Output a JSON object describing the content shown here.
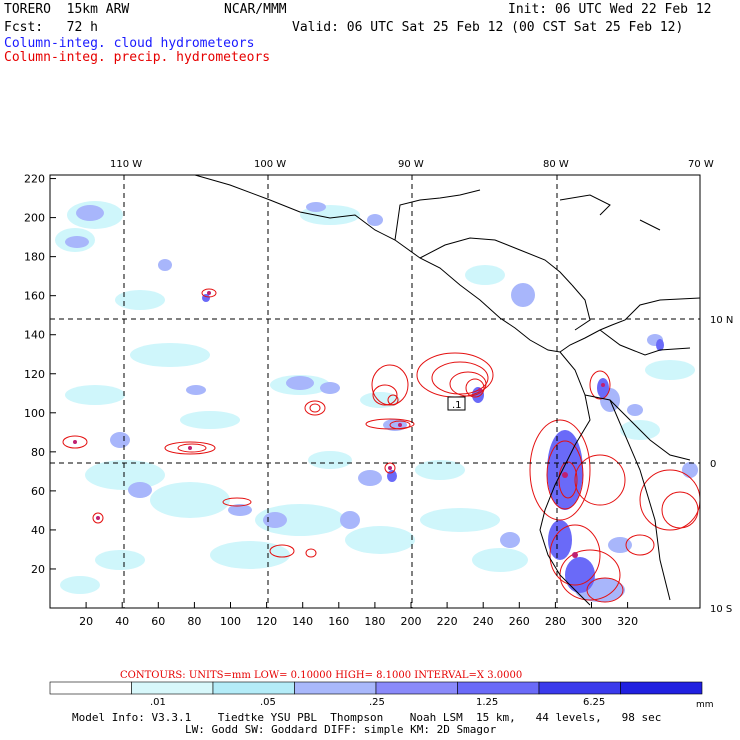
{
  "header": {
    "model": "TORERO  15km ARW",
    "org": "NCAR/MMM",
    "init": "Init: 06 UTC Wed 22 Feb 12",
    "fcst": "Fcst:   72 h",
    "valid": "Valid: 06 UTC Sat 25 Feb 12 (00 CST Sat 25 Feb 12)",
    "cloud_field": "Column-integ. cloud hydrometeors",
    "precip_field": "Column-integ. precip. hydrometeors"
  },
  "colors": {
    "cloud_text": "#1a1aff",
    "precip_text": "#e60000",
    "contour": "#e41010",
    "coast": "#000000",
    "fill_light": "#cff6fb",
    "fill_mid": "#a8b6fb",
    "fill_dark": "#6a6af8",
    "fill_deep": "#3a3ae8"
  },
  "axes": {
    "x_ticks": [
      "20",
      "40",
      "60",
      "80",
      "100",
      "120",
      "140",
      "160",
      "180",
      "200",
      "220",
      "240",
      "260",
      "280",
      "300",
      "320"
    ],
    "y_ticks": [
      "20",
      "40",
      "60",
      "80",
      "100",
      "120",
      "140",
      "160",
      "180",
      "200",
      "220"
    ],
    "lon_labels": [
      "110 W",
      "100 W",
      "90 W",
      "80 W",
      "70 W"
    ],
    "lat_labels": [
      "10 N",
      "0",
      "10 S"
    ]
  },
  "contours_label": "CONTOURS:  UNITS=mm  LOW= 0.10000        HIGH=  8.1000       INTERVAL=X  3.0000",
  "highlight_label": ".1",
  "colorbar": {
    "labels": [
      ".01",
      ".05",
      ".25",
      "1.25",
      "6.25"
    ],
    "unit": "mm",
    "bins": [
      "#ffffff",
      "#d8f8fb",
      "#b4ecf8",
      "#a9b8fb",
      "#8a8afa",
      "#6a6af8",
      "#3a3aec",
      "#2020e0"
    ]
  },
  "footer": {
    "line1": "Model Info: V3.3.1    Tiedtke YSU PBL  Thompson    Noah LSM  15 km,   44 levels,   98 sec",
    "line2": "LW: Godd SW: Goddard DIFF: simple KM: 2D Smagor"
  }
}
